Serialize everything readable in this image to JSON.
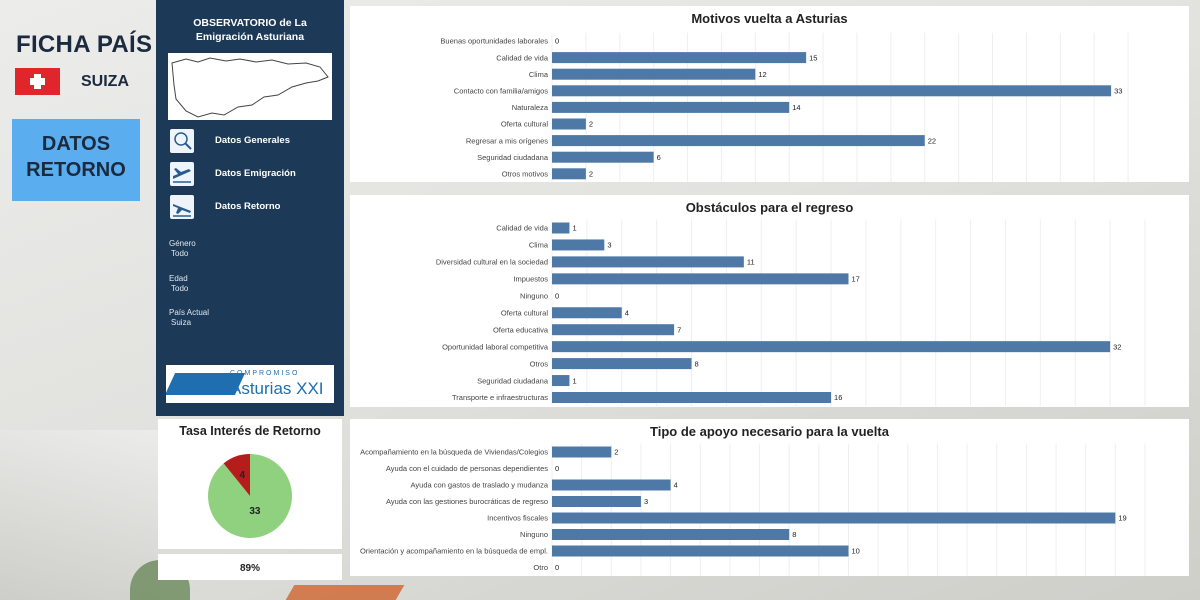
{
  "header": {
    "ficha_label": "FICHA PAÍS",
    "country": "SUIZA",
    "section_label_1": "DATOS",
    "section_label_2": "RETORNO"
  },
  "sidebar": {
    "title_line1": "OBSERVATORIO de La",
    "title_line2": "Emigración Asturiana",
    "nav": [
      {
        "label": "Datos Generales",
        "icon": "magnifier-people-icon"
      },
      {
        "label": "Datos Emigración",
        "icon": "plane-takeoff-icon"
      },
      {
        "label": "Datos Retorno",
        "icon": "plane-landing-icon"
      }
    ],
    "filters": [
      {
        "label": "Género",
        "value": "Todo"
      },
      {
        "label": "Edad",
        "value": "Todo"
      },
      {
        "label": "País Actual",
        "value": "Suiza"
      }
    ],
    "logo_top": "COMPROMISO",
    "logo_main": "Asturias XXI"
  },
  "tasa": {
    "title": "Tasa Interés de Retorno",
    "percent": "89%"
  },
  "colors": {
    "bar": "#4e79a7",
    "pie_yes": "#8fd17e",
    "pie_no": "#b51d1d",
    "sidebar": "#1c3a57",
    "accent": "#5aaef0"
  },
  "chart_data": [
    {
      "type": "bar",
      "orientation": "horizontal",
      "title": "Motivos vuelta a Asturias",
      "categories": [
        "Buenas oportunidades laborales",
        "Calidad de vida",
        "Clima",
        "Contacto con familia/amigos",
        "Naturaleza",
        "Oferta cultural",
        "Regresar a mis orígenes",
        "Seguridad ciudadana",
        "Otros motivos"
      ],
      "values": [
        0,
        15,
        12,
        33,
        14,
        2,
        22,
        6,
        2
      ],
      "xlim": [
        0,
        35
      ],
      "grid": true
    },
    {
      "type": "bar",
      "orientation": "horizontal",
      "title": "Obstáculos para el regreso",
      "categories": [
        "Calidad de vida",
        "Clima",
        "Diversidad cultural en la sociedad",
        "Impuestos",
        "Ninguno",
        "Oferta cultural",
        "Oferta educativa",
        "Oportunidad laboral competitiva",
        "Otros",
        "Seguridad ciudadana",
        "Transporte e infraestructuras"
      ],
      "values": [
        1,
        3,
        11,
        17,
        0,
        4,
        7,
        32,
        8,
        1,
        16
      ],
      "xlim": [
        0,
        34
      ],
      "grid": true
    },
    {
      "type": "bar",
      "orientation": "horizontal",
      "title": "Tipo de apoyo necesario para la vuelta",
      "categories": [
        "Acompañamiento en la búsqueda de Viviendas/Colegios",
        "Ayuda con el cuidado de personas dependientes",
        "Ayuda con gastos de traslado y mudanza",
        "Ayuda con las gestiones burocráticas de regreso",
        "Incentivos fiscales",
        "Ninguno",
        "Orientación y acompañamiento en la búsqueda de empl.",
        "Otro"
      ],
      "values": [
        2,
        0,
        4,
        3,
        19,
        8,
        10,
        0
      ],
      "xlim": [
        0,
        20
      ],
      "grid": true
    },
    {
      "type": "pie",
      "title": "Tasa Interés de Retorno",
      "slices": [
        {
          "value": 33
        },
        {
          "value": 4
        }
      ]
    }
  ]
}
